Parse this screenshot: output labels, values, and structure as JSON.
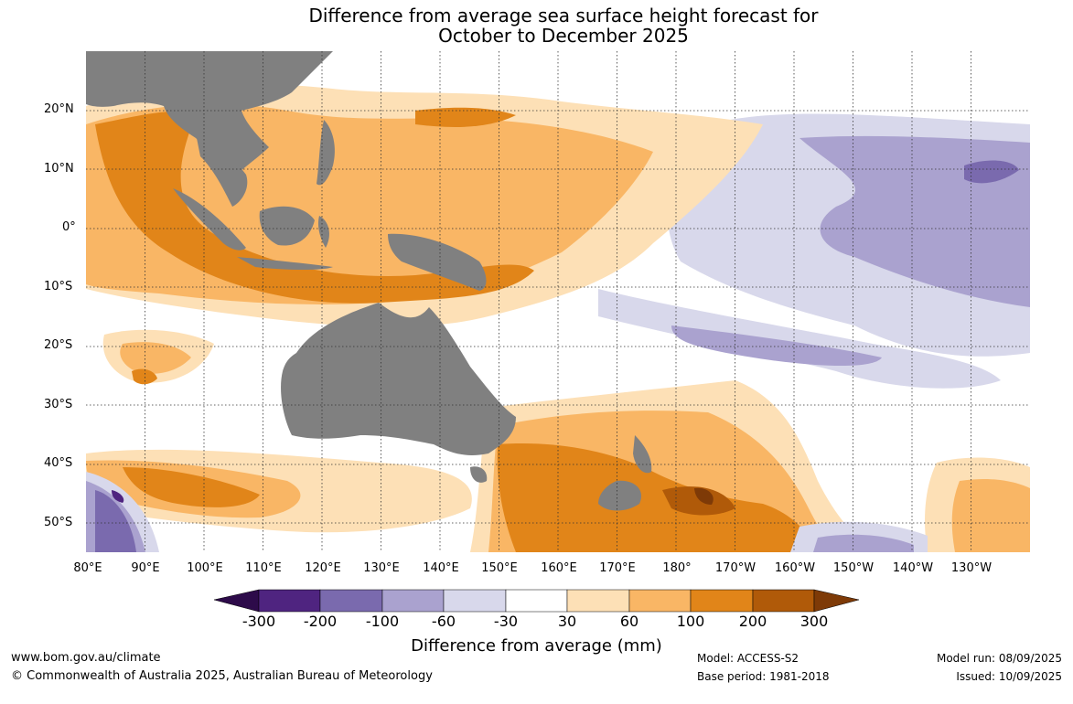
{
  "title_line1": "Difference from average sea surface height forecast for",
  "title_line2": "October to December 2025",
  "lat_labels": [
    "20°N",
    "10°N",
    "0°",
    "10°S",
    "20°S",
    "30°S",
    "40°S",
    "50°S"
  ],
  "lon_labels": [
    "80°E",
    "90°E",
    "100°E",
    "110°E",
    "120°E",
    "130°E",
    "140°E",
    "150°E",
    "160°E",
    "170°E",
    "180°",
    "170°W",
    "160°W",
    "150°W",
    "140°W",
    "130°W"
  ],
  "colorbar": {
    "ticks": [
      "-300",
      "-200",
      "-100",
      "-60",
      "-30",
      "30",
      "60",
      "100",
      "200",
      "300"
    ],
    "colors": [
      "#2d0b4a",
      "#4f2480",
      "#7a6aae",
      "#aaa2cf",
      "#d8d8eb",
      "#ffffff",
      "#fde0b6",
      "#f9b665",
      "#e18519",
      "#b05a09",
      "#7e3a07"
    ],
    "title": "Difference from average (mm)"
  },
  "land_color": "#808080",
  "footer": {
    "website": "www.bom.gov.au/climate",
    "copyright": "© Commonwealth of Australia 2025, Australian Bureau of Meteorology",
    "model": "Model: ACCESS-S2",
    "base_period": "Base period: 1981-2018",
    "model_run": "Model run: 08/09/2025",
    "issued": "Issued: 10/09/2025"
  }
}
